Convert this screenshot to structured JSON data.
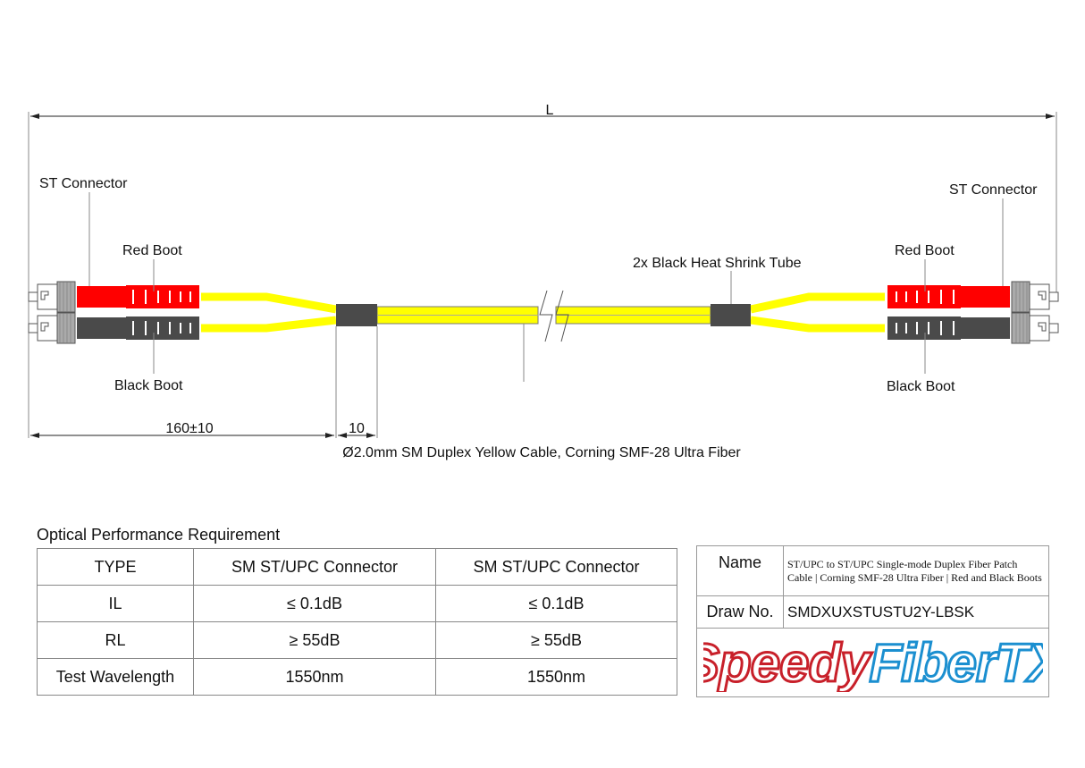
{
  "diagram": {
    "length_label": "L",
    "left_st_connector": "ST Connector",
    "left_red_boot": "Red Boot",
    "left_black_boot": "Black Boot",
    "right_st_connector": "ST Connector",
    "right_red_boot": "Red Boot",
    "right_black_boot": "Black Boot",
    "heat_shrink": "2x Black Heat Shrink Tube",
    "breakout_dim": "160±10",
    "shrink_dim": "10",
    "cable_desc": "Ø2.0mm SM Duplex Yellow Cable, Corning SMF-28 Ultra Fiber",
    "colors": {
      "cable": "#FFFF00",
      "red_boot": "#FF0000",
      "black_boot": "#4A4A4A",
      "shrink": "#4A4A4A"
    }
  },
  "performance": {
    "title": "Optical Performance Requirement",
    "rows": [
      [
        "TYPE",
        "SM ST/UPC Connector",
        "SM ST/UPC Connector"
      ],
      [
        "IL",
        "≤ 0.1dB",
        "≤ 0.1dB"
      ],
      [
        "RL",
        "≥ 55dB",
        "≥ 55dB"
      ],
      [
        "Test Wavelength",
        "1550nm",
        "1550nm"
      ]
    ]
  },
  "info": {
    "name_label": "Name",
    "name_value": "ST/UPC to ST/UPC Single-mode Duplex Fiber Patch Cable | Corning SMF-28 Ultra Fiber | Red and Black Boots",
    "drawno_label": "Draw No.",
    "drawno_value": "SMDXUXSTUSTU2Y-LBSK",
    "logo_part1": "Speedy",
    "logo_part2": "FiberTX",
    "logo_colors": {
      "speedy": "#C8202A",
      "fibertx": "#1B8FD0"
    }
  }
}
